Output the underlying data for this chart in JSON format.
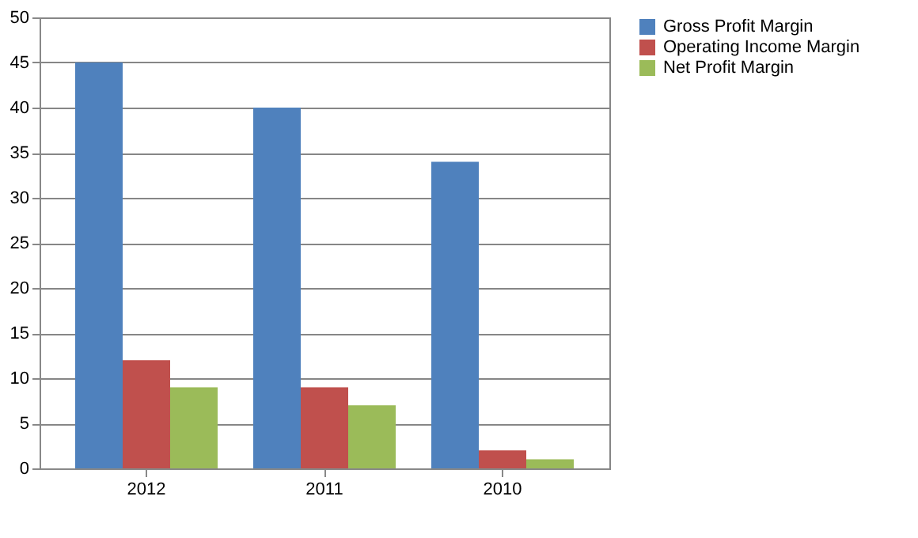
{
  "chart_data": {
    "type": "bar",
    "categories": [
      "2012",
      "2011",
      "2010"
    ],
    "series": [
      {
        "name": "Gross Profit Margin",
        "color": "#4f81bd",
        "values": [
          45,
          40,
          34
        ]
      },
      {
        "name": "Operating Income Margin",
        "color": "#c0504d",
        "values": [
          12,
          9,
          2
        ]
      },
      {
        "name": "Net Profit Margin",
        "color": "#9bbb59",
        "values": [
          9,
          7,
          1
        ]
      }
    ],
    "ylim": [
      0,
      50
    ],
    "yticks": [
      0,
      5,
      10,
      15,
      20,
      25,
      30,
      35,
      40,
      45,
      50
    ],
    "grid": "y",
    "legend": "right"
  }
}
